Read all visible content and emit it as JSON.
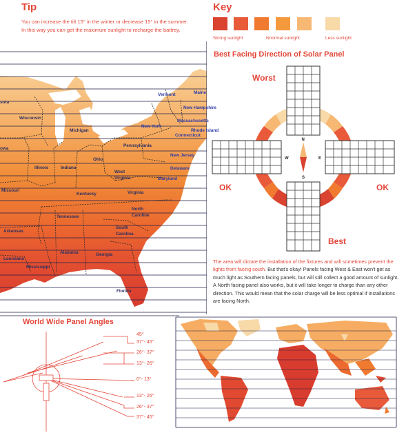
{
  "tip": {
    "title": "Tip",
    "line1": "You can increase the tilt 15° in the winter or decrease 15° in the summer.",
    "line2": "In this way you can get the maximum sunlight to recharge the battrey."
  },
  "key": {
    "title": "Key",
    "swatches": [
      "#d9432f",
      "#e85a3a",
      "#f07a2f",
      "#f59a3c",
      "#f6b873",
      "#f8d9a8"
    ],
    "labels": [
      "Strong sunlight",
      "Nnormal sunlight",
      "Less sunlight"
    ]
  },
  "best_facing": {
    "title": "Best Facing Direction of Solar Panel",
    "worst": "Worst",
    "best": "Best",
    "ok_left": "OK",
    "ok_right": "OK",
    "compass": {
      "n": "N",
      "s": "S",
      "e": "E",
      "w": "W"
    }
  },
  "paragraph": {
    "highlight": "The area will dictate the installation of the fixtures and will sometimes prevent the lights from facing south.",
    "body": " But that's okay! Panels facing West & East won't get as much light as Southern facing panels, but will still collect a good amount of sunlight. A North facing panel also works, but it will take longer to charge than any other direction. This would mean that the solar charge will be less optimal if installations are facing North."
  },
  "map_states": {
    "vermont": "Vermont",
    "maine": "Maine",
    "minnesota": "sota",
    "new_hampshire": "New Hampshire",
    "wisconsin": "Wisconsin",
    "massachusetts": "Massachusetts",
    "michigan": "Michigan",
    "new_york": "New York",
    "rhode_island": "Rhode Island",
    "connecticut": "Connecticut",
    "iowa": "owa",
    "pennsylvania": "Pennsylvania",
    "new_jersey": "New Jersey",
    "ohio": "Ohio",
    "illinois": "Illinois",
    "indiana": "Indiana",
    "delaware": "Delaware",
    "west_virginia": "West\nVirginia",
    "maryland": "Maryland",
    "missouri": "Missouri",
    "kentucky": "Kentucky",
    "virginia": "Virginia",
    "north_carolina": "North\nCaroline",
    "tennessee": "Tennessee",
    "arkansas": "Arkansas",
    "south_carolina": "South\nCarolina",
    "alabama": "Alabama",
    "georgia": "Georgia",
    "louisiana": "Louisiana",
    "mississippi": "Mississippi",
    "florida": "Florida"
  },
  "world_wide": {
    "title": "World Wide Panel Angles",
    "angles": [
      "45°",
      "37°- 45°",
      "26°- 37°",
      "13°- 26°",
      "0°- 13°",
      "13°- 26°",
      "26°- 37°",
      "37°- 45°"
    ]
  }
}
